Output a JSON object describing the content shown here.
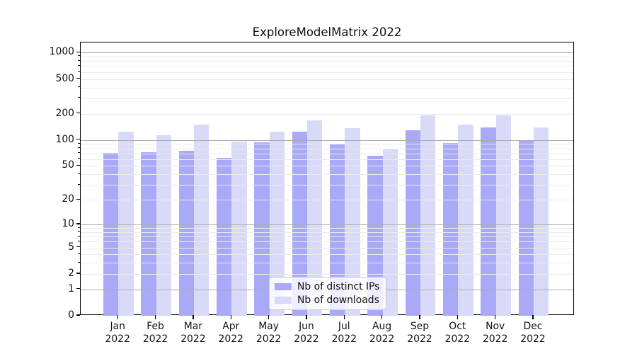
{
  "title": "ExploreModelMatrix 2022",
  "chart_data": {
    "type": "bar",
    "title": "ExploreModelMatrix 2022",
    "categories": [
      "Jan",
      "Feb",
      "Mar",
      "Apr",
      "May",
      "Jun",
      "Jul",
      "Aug",
      "Sep",
      "Oct",
      "Nov",
      "Dec"
    ],
    "x_tick_second_line": "2022",
    "series": [
      {
        "name": "Nb of distinct IPs",
        "color": "#a9a9f7",
        "values": [
          71,
          72,
          75,
          62,
          94,
          125,
          90,
          66,
          130,
          93,
          140,
          98
        ]
      },
      {
        "name": "Nb of downloads",
        "color": "#d9d9f8",
        "values": [
          125,
          114,
          150,
          95,
          125,
          167,
          137,
          80,
          190,
          150,
          192,
          139
        ]
      }
    ],
    "yscale": "log1p",
    "y_ticks": [
      0,
      1,
      2,
      5,
      10,
      20,
      50,
      100,
      200,
      500,
      1000
    ],
    "y_major_gridlines": [
      1,
      10,
      100,
      1000
    ],
    "ylim": [
      0,
      1305
    ],
    "xlabel": "",
    "ylabel": "",
    "grid": true,
    "grid_above_bars": true,
    "legend_position": "lower center"
  },
  "colors": {
    "background": "#ffffff",
    "spine": "#000000",
    "grid_major": "#ababab",
    "grid_minor": "#ebebeb",
    "text": "#111111",
    "legend_border": "#cccccc"
  }
}
